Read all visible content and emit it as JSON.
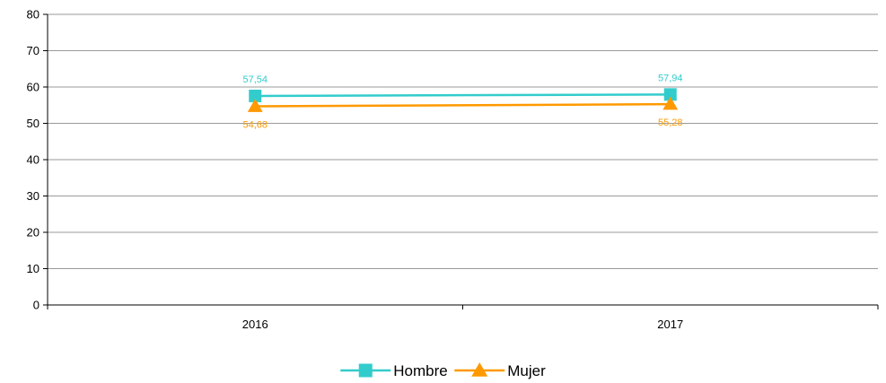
{
  "chart_data": {
    "type": "line",
    "title": "",
    "xlabel": "",
    "ylabel": "",
    "categories": [
      "2016",
      "2017"
    ],
    "ylim": [
      0,
      80
    ],
    "yticks": [
      0,
      10,
      20,
      30,
      40,
      50,
      60,
      70,
      80
    ],
    "grid": "horizontal",
    "legend_position": "bottom",
    "series": [
      {
        "name": "Hombre",
        "values": [
          57.54,
          57.94
        ],
        "labels": [
          "57,54",
          "57,94"
        ],
        "color": "#33CCCC",
        "marker": "square",
        "label_position": "above"
      },
      {
        "name": "Mujer",
        "values": [
          54.68,
          55.28
        ],
        "labels": [
          "54,68",
          "55,28"
        ],
        "color": "#FF9900",
        "marker": "triangle",
        "label_position": "below"
      }
    ]
  }
}
